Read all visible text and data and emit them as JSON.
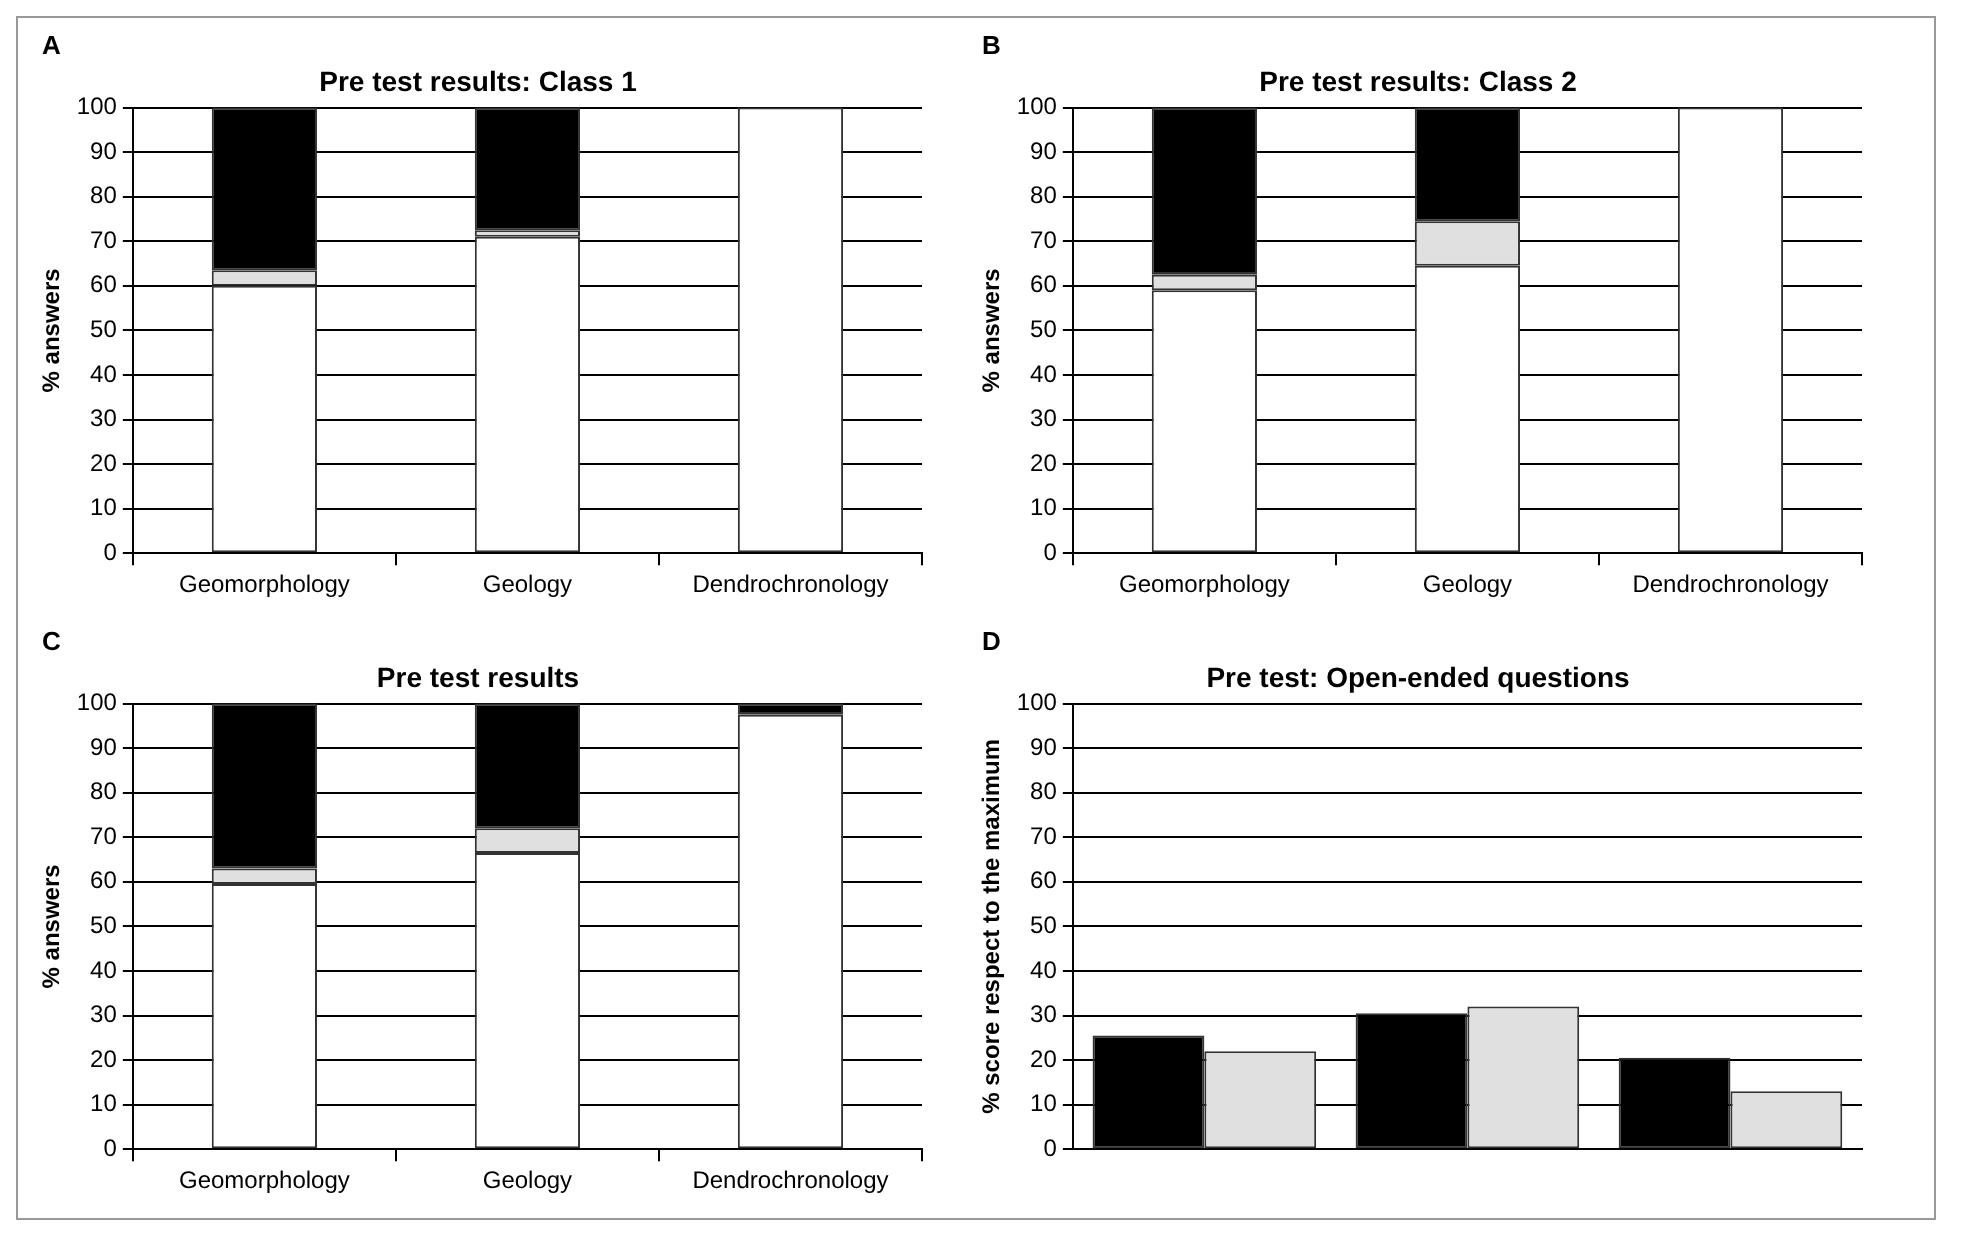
{
  "chart_data": [
    {
      "type": "bar",
      "title": "Pre test results: Class 1",
      "ylabel": "% answers",
      "annotations": [
        "A"
      ],
      "categories": [
        "Geomorphology",
        "Geology",
        "Dendrochronology"
      ],
      "stacked": true,
      "ylim": [
        0,
        100
      ],
      "yticks": [
        0,
        10,
        20,
        30,
        40,
        50,
        60,
        70,
        80,
        90,
        100
      ],
      "grid": "y",
      "series": [
        {
          "color": "#ffffff",
          "values": [
            60,
            71,
            100
          ]
        },
        {
          "color": "#e0e0e0",
          "values": [
            3.5,
            1.5,
            0
          ]
        },
        {
          "color": "#000000",
          "values": [
            36.5,
            27.5,
            0
          ]
        }
      ]
    },
    {
      "type": "bar",
      "title": "Pre test results: Class 2",
      "ylabel": "% answers",
      "annotations": [
        "B"
      ],
      "categories": [
        "Geomorphology",
        "Geology",
        "Dendrochronology"
      ],
      "stacked": true,
      "ylim": [
        0,
        100
      ],
      "yticks": [
        0,
        10,
        20,
        30,
        40,
        50,
        60,
        70,
        80,
        90,
        100
      ],
      "grid": "y",
      "series": [
        {
          "color": "#ffffff",
          "values": [
            59,
            64.5,
            100
          ]
        },
        {
          "color": "#e0e0e0",
          "values": [
            3.5,
            10,
            0
          ]
        },
        {
          "color": "#000000",
          "values": [
            37.5,
            25.5,
            0
          ]
        }
      ]
    },
    {
      "type": "bar",
      "title": "Pre test results",
      "ylabel": "% answers",
      "annotations": [
        "C"
      ],
      "categories": [
        "Geomorphology",
        "Geology",
        "Dendrochronology"
      ],
      "stacked": true,
      "ylim": [
        0,
        100
      ],
      "yticks": [
        0,
        10,
        20,
        30,
        40,
        50,
        60,
        70,
        80,
        90,
        100
      ],
      "grid": "y",
      "series": [
        {
          "color": "#ffffff",
          "values": [
            59.5,
            66.5,
            97.5
          ]
        },
        {
          "color": "#e0e0e0",
          "values": [
            3.5,
            5.5,
            0
          ]
        },
        {
          "color": "#000000",
          "values": [
            37,
            28,
            2.5
          ]
        }
      ]
    },
    {
      "type": "bar",
      "title": "Pre test: Open-ended questions",
      "ylabel": "% score respect to the maximum",
      "annotations": [
        "D"
      ],
      "categories": [
        null,
        null,
        null
      ],
      "ylim": [
        0,
        100
      ],
      "yticks": [
        0,
        10,
        20,
        30,
        40,
        50,
        60,
        70,
        80,
        90,
        100
      ],
      "grid": "y",
      "series": [
        {
          "color": "#000000",
          "values": [
            25.5,
            30.5,
            20.5
          ]
        },
        {
          "color": "#e0e0e0",
          "values": [
            22,
            32,
            13
          ]
        }
      ]
    }
  ]
}
